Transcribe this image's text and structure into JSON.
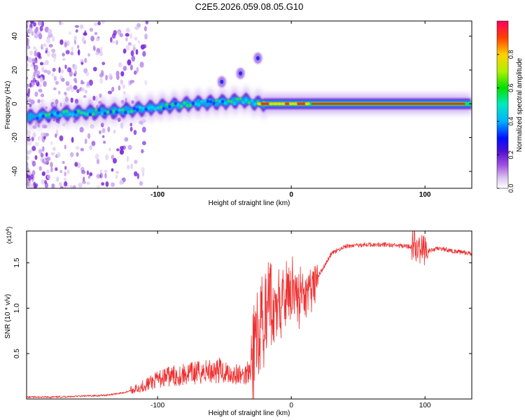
{
  "title": "C2E5.2026.059.08.05.G10",
  "colors": {
    "trace": "#f03030",
    "frame": "#000000",
    "background": "#ffffff"
  },
  "chart_data": [
    {
      "type": "heatmap",
      "title": "C2E5.2026.059.08.05.G10",
      "xlabel": "Height of straight line (km)",
      "ylabel": "Frequency (Hz)",
      "xlim": [
        -198,
        135
      ],
      "ylim": [
        -50,
        49
      ],
      "xticks": [
        -100,
        0,
        100
      ],
      "xtick_labels": [
        "-100",
        "0",
        "100"
      ],
      "yticks": [
        40,
        20,
        0,
        -20,
        -40
      ],
      "ytick_labels": [
        "40",
        "20",
        "0",
        "-20",
        "-40"
      ],
      "colorbar": {
        "label": "Normalized spectral amplitude",
        "range": [
          0.0,
          1.0
        ],
        "ticks": [
          0.0,
          0.2,
          0.4,
          0.6,
          0.8
        ],
        "tick_labels": [
          "0.0",
          "0.2",
          "0.4",
          "0.6",
          "0.8"
        ],
        "colormap": "rainbow"
      },
      "ridge": {
        "description": "main spectral ridge: frequency (Hz) vs height (km)",
        "x": [
          -198,
          -175,
          -150,
          -125,
          -100,
          -75,
          -50,
          -35,
          -25,
          -15,
          0,
          15,
          50,
          100,
          135
        ],
        "y": [
          -8,
          -6,
          -5,
          -4,
          -2,
          0,
          1,
          2,
          0,
          0,
          0,
          0,
          0,
          0,
          0
        ]
      },
      "features": [
        {
          "x": -52,
          "y": 13,
          "label": ""
        },
        {
          "x": -38,
          "y": 18,
          "label": ""
        },
        {
          "x": -25,
          "y": 27,
          "label": ""
        }
      ]
    },
    {
      "type": "line",
      "title": "",
      "xlabel": "Height of straight line (km)",
      "ylabel": "SNR (10 * v/v)",
      "y_multiplier": "(x10",
      "y_multiplier_exp": "4",
      "y_multiplier_close": ")",
      "xlim": [
        -198,
        135
      ],
      "ylim": [
        0,
        1.85
      ],
      "xticks": [
        -100,
        0,
        100
      ],
      "xtick_labels": [
        "-100",
        "0",
        "100"
      ],
      "yticks": [
        0.5,
        1.0,
        1.5
      ],
      "ytick_labels": [
        "0.5",
        "1.0",
        "1.5"
      ],
      "series": [
        {
          "name": "SNR",
          "color": "#f03030",
          "x": [
            -198,
            -180,
            -160,
            -140,
            -125,
            -115,
            -105,
            -95,
            -85,
            -75,
            -65,
            -55,
            -45,
            -35,
            -28,
            -22,
            -18,
            -12,
            -5,
            0,
            5,
            10,
            20,
            30,
            40,
            55,
            70,
            85,
            95,
            100,
            110,
            125,
            135
          ],
          "y": [
            0.02,
            0.02,
            0.03,
            0.04,
            0.07,
            0.12,
            0.18,
            0.24,
            0.26,
            0.28,
            0.3,
            0.32,
            0.28,
            0.25,
            0.45,
            0.9,
            1.0,
            1.05,
            1.15,
            1.2,
            1.15,
            1.05,
            1.35,
            1.6,
            1.68,
            1.7,
            1.7,
            1.68,
            1.68,
            1.62,
            1.66,
            1.62,
            1.6
          ]
        }
      ]
    }
  ]
}
